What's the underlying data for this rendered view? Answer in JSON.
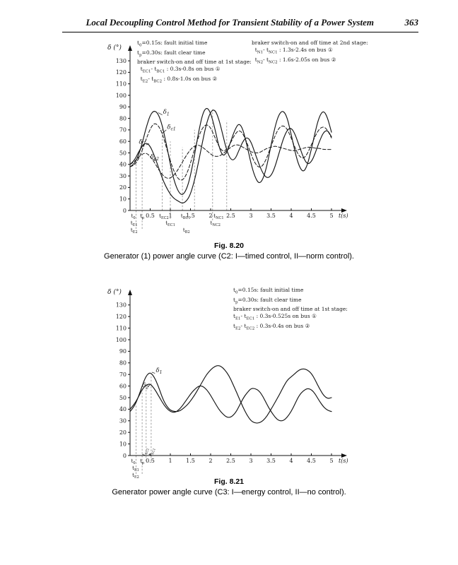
{
  "page": {
    "header_title": "Local Decoupling Control Method for Transient Stability of a Power System",
    "page_number": "363"
  },
  "fig820": {
    "caption_title": "Fig. 8.20",
    "caption_text": "Generator (1) power angle curve (C2: I—timed control, II—norm control).",
    "notes_left": [
      "t{0}=0.15s: fault initial time",
      "t{p}=0.30s: fault clear time",
      "braker switch-on and off time at 1st stage:",
      "  t{EC1}- t{BC1} : 0.3s-0.8s on bus ①",
      "  t{E2}- t{BC2} : 0.8s-1.0s on bus ②"
    ],
    "notes_right": [
      "braker switch-on and off time at 2nd stage:",
      "  t{N1}- t{NC1} : 1.3s-2.4s on bus ①",
      "  t{N2}- t{NC2} : 1.6s-2.05s on bus ②"
    ]
  },
  "fig821": {
    "caption_title": "Fig. 8.21",
    "caption_text": "Generator power angle curve (C3: I—energy control, II—no control).",
    "notes": [
      "t{0}=0.15s: fault initial time",
      "t{p}=0.30s: fault clear time",
      "braker switch-on and off time at 1st stage:",
      "t{E1}- t{EC1} : 0.3s-0.525s on bus ①",
      "t{E2}- t{EC2} : 0.3s-0.4s on bus ②"
    ]
  },
  "chart_data": [
    {
      "id": "fig820",
      "type": "line",
      "title": "Fig. 8.20",
      "xlabel": "t(s)",
      "ylabel": "δ (°)",
      "xlim": [
        0,
        5
      ],
      "ylim": [
        0,
        130
      ],
      "grid": false,
      "legend": "inline-labels",
      "yticks": [
        0,
        10,
        20,
        30,
        40,
        50,
        60,
        70,
        80,
        90,
        100,
        110,
        120,
        130
      ],
      "xticks": [
        0.5,
        1,
        1.5,
        2,
        2.5,
        3,
        3.5,
        4,
        4.5,
        5
      ],
      "layout": {
        "x0": 66,
        "xunit": 57,
        "y0": 246,
        "yunit": 1.63,
        "ytop": 20
      },
      "x": [
        0,
        0.1,
        0.2,
        0.3,
        0.4,
        0.5,
        0.6,
        0.7,
        0.8,
        0.9,
        1,
        1.1,
        1.2,
        1.3,
        1.4,
        1.5,
        1.6,
        1.7,
        1.8,
        1.9,
        2,
        2.1,
        2.2,
        2.3,
        2.4,
        2.5,
        2.6,
        2.7,
        2.8,
        2.9,
        3,
        3.1,
        3.2,
        3.3,
        3.4,
        3.5,
        3.6,
        3.7,
        3.8,
        3.9,
        4,
        4.1,
        4.2,
        4.3,
        4.4,
        4.5,
        4.6,
        4.7,
        4.8,
        4.9,
        5
      ],
      "series": [
        {
          "name": "δ1",
          "style": "solid",
          "values": [
            38,
            40,
            47,
            58,
            72,
            83,
            87,
            84,
            74,
            58,
            40,
            25,
            16,
            13,
            18,
            30,
            48,
            68,
            84,
            90,
            85,
            72,
            56,
            47,
            50,
            60,
            70,
            76,
            71,
            57,
            41,
            29,
            23,
            27,
            39,
            57,
            73,
            84,
            87,
            81,
            66,
            50,
            38,
            33,
            39,
            53,
            69,
            82,
            87,
            81,
            68
          ]
        },
        {
          "name": "δc1",
          "style": "dashed",
          "values": [
            38,
            39,
            44,
            52,
            62,
            71,
            76,
            74,
            67,
            55,
            43,
            33,
            27,
            26,
            31,
            41,
            53,
            64,
            72,
            75,
            72,
            64,
            56,
            51,
            53,
            59,
            66,
            70,
            67,
            59,
            49,
            41,
            37,
            39,
            46,
            56,
            65,
            72,
            74,
            71,
            63,
            54,
            47,
            45,
            49,
            57,
            65,
            71,
            73,
            70,
            63
          ]
        },
        {
          "name": "δ2",
          "style": "solid",
          "values": [
            40,
            43,
            50,
            56,
            59,
            56,
            48,
            38,
            28,
            20,
            14,
            10,
            8,
            6,
            8,
            14,
            26,
            42,
            60,
            76,
            86,
            88,
            80,
            66,
            52,
            44,
            44,
            52,
            60,
            64,
            60,
            50,
            40,
            32,
            28,
            30,
            38,
            50,
            62,
            70,
            72,
            66,
            56,
            46,
            40,
            42,
            50,
            60,
            68,
            70,
            64
          ]
        },
        {
          "name": "δc2",
          "style": "dashed",
          "values": [
            40,
            42,
            46,
            49,
            50,
            47,
            42,
            36,
            31,
            28,
            28,
            31,
            36,
            42,
            48,
            53,
            56,
            57,
            55,
            52,
            49,
            47,
            47,
            49,
            52,
            55,
            57,
            57,
            55,
            53,
            51,
            50,
            50,
            52,
            54,
            55,
            56,
            55,
            54,
            53,
            52,
            52,
            53,
            54,
            55,
            55,
            54,
            54,
            53,
            53,
            53
          ]
        }
      ],
      "curve_labels": [
        {
          "text": "δ{1}",
          "x": 0.82,
          "y": 84
        },
        {
          "text": "δ{c1}",
          "x": 0.92,
          "y": 71
        },
        {
          "text": "δ{2}",
          "x": 0.22,
          "y": 58
        },
        {
          "text": "δ{c2}",
          "x": 0.5,
          "y": 45
        }
      ],
      "leaders": [
        [
          0.8,
          83,
          0.7,
          85
        ],
        [
          0.9,
          70,
          0.8,
          67
        ],
        [
          0.4,
          57,
          0.47,
          58
        ],
        [
          0.56,
          45,
          0.62,
          43
        ]
      ],
      "vlines": [
        [
          0.15,
          42,
          26
        ],
        [
          0.3,
          57,
          26
        ],
        [
          0.8,
          74,
          0
        ],
        [
          1.0,
          60,
          12
        ],
        [
          1.3,
          55,
          0
        ],
        [
          1.6,
          70,
          0
        ],
        [
          2.05,
          88,
          14
        ],
        [
          2.4,
          78,
          0
        ]
      ],
      "axis_labels": [
        {
          "text": "t{0}",
          "x": 0.08,
          "row": 0
        },
        {
          "text": "t{p}",
          "x": 0.3,
          "row": 0
        },
        {
          "text": "t{EC2}",
          "x": 0.84,
          "row": 0
        },
        {
          "text": "t{BC1}",
          "x": 1.38,
          "row": 0
        },
        {
          "text": "t{NC1}",
          "x": 2.2,
          "row": 0
        },
        {
          "text": "t{E1}",
          "x": 0.1,
          "row": 1
        },
        {
          "text": "t{EC1}",
          "x": 1.0,
          "row": 1
        },
        {
          "text": "t{NC2}",
          "x": 2.12,
          "row": 1
        },
        {
          "text": "t{E2}",
          "x": 0.1,
          "row": 2
        },
        {
          "text": "t{B2}",
          "x": 1.4,
          "row": 2
        }
      ],
      "above_labels": []
    },
    {
      "id": "fig821",
      "type": "line",
      "title": "Fig. 8.21",
      "xlabel": "t(s)",
      "ylabel": "δ (°)",
      "xlim": [
        0,
        5
      ],
      "ylim": [
        0,
        130
      ],
      "grid": false,
      "legend": "inline-labels",
      "yticks": [
        0,
        10,
        20,
        30,
        40,
        50,
        60,
        70,
        80,
        90,
        100,
        110,
        120,
        130
      ],
      "xticks": [
        0.5,
        1,
        1.5,
        2,
        2.5,
        3,
        3.5,
        4,
        4.5,
        5
      ],
      "layout": {
        "x0": 66,
        "xunit": 57,
        "y0": 245,
        "yunit": 1.64,
        "ytop": 18
      },
      "x": [
        0,
        0.1,
        0.2,
        0.3,
        0.4,
        0.5,
        0.6,
        0.7,
        0.8,
        0.9,
        1,
        1.1,
        1.2,
        1.3,
        1.4,
        1.5,
        1.6,
        1.7,
        1.8,
        1.9,
        2,
        2.1,
        2.2,
        2.3,
        2.4,
        2.5,
        2.6,
        2.7,
        2.8,
        2.9,
        3,
        3.1,
        3.2,
        3.3,
        3.4,
        3.5,
        3.6,
        3.7,
        3.8,
        3.9,
        4,
        4.1,
        4.2,
        4.3,
        4.4,
        4.5,
        4.6,
        4.7,
        4.8,
        4.9,
        5
      ],
      "series": [
        {
          "name": "δ1",
          "style": "solid",
          "values": [
            38,
            42,
            50,
            60,
            69,
            72,
            68,
            60,
            50,
            43,
            39,
            38,
            38,
            40,
            43,
            47,
            52,
            58,
            64,
            70,
            74,
            77,
            78,
            76,
            72,
            66,
            58,
            50,
            42,
            35,
            30,
            28,
            28,
            30,
            34,
            40,
            46,
            52,
            59,
            65,
            68,
            71,
            74,
            75,
            74,
            71,
            65,
            58,
            52,
            49,
            50
          ]
        },
        {
          "name": "δ2",
          "style": "solid",
          "values": [
            40,
            44,
            50,
            57,
            61,
            62,
            58,
            52,
            46,
            41,
            38,
            37,
            39,
            43,
            48,
            53,
            57,
            60,
            60,
            57,
            52,
            46,
            40,
            36,
            33,
            33,
            36,
            42,
            49,
            54,
            58,
            58,
            56,
            51,
            44,
            38,
            33,
            30,
            30,
            33,
            38,
            45,
            52,
            56,
            58,
            57,
            53,
            47,
            42,
            39,
            38
          ]
        }
      ],
      "curve_labels": [
        {
          "text": "δ{1}",
          "x": 0.64,
          "y": 72
        },
        {
          "text": "δ{2}",
          "x": 0.3,
          "y": 59
        }
      ],
      "leaders": [
        [
          0.62,
          71,
          0.54,
          72
        ],
        [
          0.44,
          59,
          0.49,
          61
        ]
      ],
      "vlines": [
        [
          0.15,
          44,
          26
        ],
        [
          0.3,
          58,
          26
        ],
        [
          0.4,
          62,
          8
        ],
        [
          0.525,
          70,
          8
        ]
      ],
      "axis_labels": [
        {
          "text": "t{0}",
          "x": 0.08,
          "row": 0
        },
        {
          "text": "t{p}",
          "x": 0.3,
          "row": 0
        },
        {
          "text": "t{E1}",
          "x": 0.14,
          "row": 1
        },
        {
          "text": "t{E2}",
          "x": 0.14,
          "row": 2
        }
      ],
      "above_labels": [
        {
          "text": "t{EC2}",
          "x": 0.4
        },
        {
          "text": "t{EC1}",
          "x": 0.56
        }
      ]
    }
  ]
}
